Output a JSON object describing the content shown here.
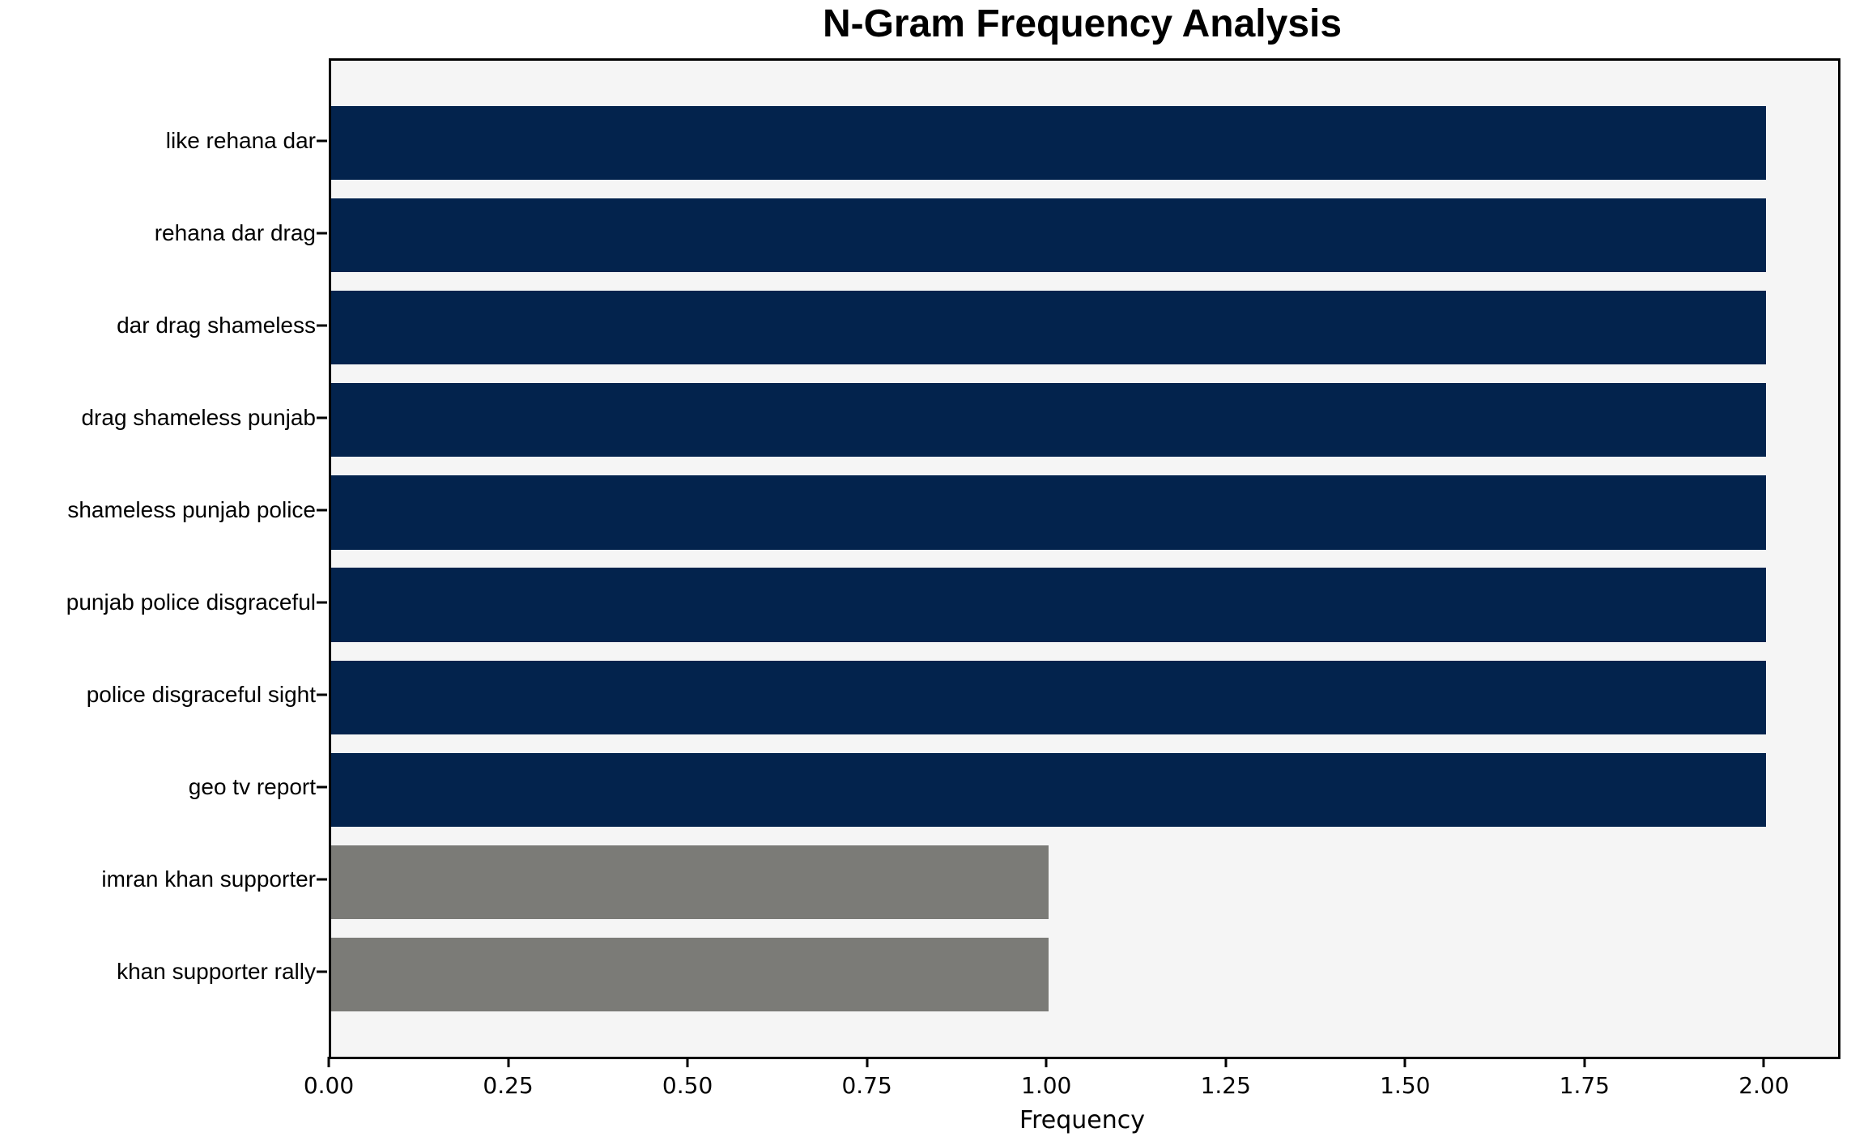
{
  "chart_data": {
    "type": "bar",
    "orientation": "horizontal",
    "title": "N-Gram Frequency Analysis",
    "xlabel": "Frequency",
    "ylabel": "",
    "categories": [
      "like rehana dar",
      "rehana dar drag",
      "dar drag shameless",
      "drag shameless punjab",
      "shameless punjab police",
      "punjab police disgraceful",
      "police disgraceful sight",
      "geo tv report",
      "imran khan supporter",
      "khan supporter rally"
    ],
    "values": [
      2,
      2,
      2,
      2,
      2,
      2,
      2,
      2,
      1,
      1
    ],
    "bar_colors": [
      "#03234d",
      "#03234d",
      "#03234d",
      "#03234d",
      "#03234d",
      "#03234d",
      "#03234d",
      "#03234d",
      "#7b7b77",
      "#7b7b77"
    ],
    "xlim": [
      0,
      2.1
    ],
    "xticks": [
      0,
      0.25,
      0.5,
      0.75,
      1.0,
      1.25,
      1.5,
      1.75,
      2.0
    ],
    "xtick_labels": [
      "0.00",
      "0.25",
      "0.50",
      "0.75",
      "1.00",
      "1.25",
      "1.50",
      "1.75",
      "2.00"
    ],
    "grid": false,
    "legend": null,
    "colors": {
      "navy_bar": "#03234d",
      "gray_bar": "#7b7b77",
      "plot_background": "#f5f5f5",
      "figure_background": "#ffffff",
      "spine": "#000000",
      "text": "#000000"
    }
  }
}
